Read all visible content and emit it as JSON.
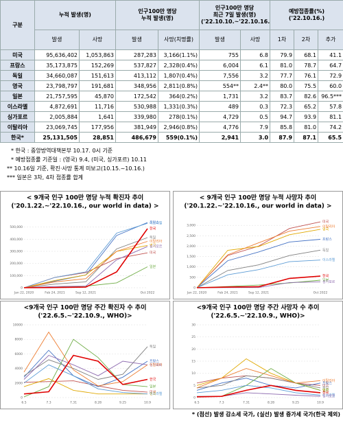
{
  "table": {
    "header": [
      [
        "구분"
      ],
      [
        "누적 발생(명)"
      ],
      [
        "인구100만 명당",
        "누적 발생(명)"
      ],
      [
        "인구100만 명당",
        "최근 7일 발생(명)",
        "('22.10.10.~'22.10.16.)"
      ],
      [
        "예방접종률(%)",
        "('22.10.16.)"
      ]
    ],
    "subheader": [
      "발생",
      "사망",
      "발생",
      "사망(치명률)",
      "발생",
      "사망",
      "1차",
      "2차",
      "추가"
    ],
    "rows": [
      [
        "미국",
        "95,636,402",
        "1,053,863",
        "287,283",
        "3,166(1.1%)",
        "755",
        "6.8",
        "79.9",
        "68.1",
        "41.1"
      ],
      [
        "프랑스",
        "35,173,875",
        "152,269",
        "537,827",
        "2,328(0.4%)",
        "6,004",
        "6.1",
        "81.0",
        "78.7",
        "64.7"
      ],
      [
        "독일",
        "34,660,087",
        "151,613",
        "413,112",
        "1,807(0.4%)",
        "7,556",
        "3.2",
        "77.7",
        "76.1",
        "72.9"
      ],
      [
        "영국",
        "23,798,797",
        "191,681",
        "348,956",
        "2,811(0.8%)",
        "554**",
        "2.4**",
        "80.0",
        "75.5",
        "60.0"
      ],
      [
        "일본",
        "21,757,595",
        "45,870",
        "172,542",
        "364(0.2%)",
        "1,731",
        "3.2",
        "83.7",
        "82.6",
        "96.5***"
      ],
      [
        "이스라엘",
        "4,872,691",
        "11,716",
        "530,988",
        "1,331(0.3%)",
        "489",
        "0.3",
        "72.3",
        "65.2",
        "57.8"
      ],
      [
        "싱가포르",
        "2,005,884",
        "1,641",
        "339,980",
        "278(0.1%)",
        "4,729",
        "0.5",
        "94.7",
        "93.9",
        "81.1"
      ],
      [
        "이탈리아",
        "23,069,745",
        "177,956",
        "381,949",
        "2,946(0.8%)",
        "4,776",
        "7.9",
        "85.8",
        "81.0",
        "74.2"
      ],
      [
        "한국*",
        "25,131,505",
        "28,851",
        "486,679",
        "559(0.1%)",
        "2,941",
        "3.0",
        "87.9",
        "87.1",
        "65.5"
      ]
    ]
  },
  "notes": [
    "* 한국 : 중앙방역대책본부 10.17. 0시 기준",
    "* 예방접종률 기준일 : (영국) 9.4, (미국, 싱가포르) 10.11",
    "** 10.16일 기준, 확진·사망 통계 미보고(10.15.~10.16.)",
    "*** 일본은 3차, 4차 접종률 합계"
  ],
  "charts": [
    {
      "type": "line",
      "title": "< 9개국 인구 100만 명당 누적 확진자 추이",
      "subtitle": "('20.1.22.~'22.10.16., our world in data) >",
      "categories": [
        "Jan 22, 2020",
        "Feb 24, 2021",
        "Sep 12, 2021",
        null,
        "Oct 2022"
      ],
      "ylim": [
        0,
        600000
      ],
      "yticks": [
        0,
        {
          "value": 100000,
          "label": "100,000"
        },
        {
          "value": 200000,
          "label": "200,000"
        },
        {
          "value": 300000,
          "label": "300,000"
        },
        {
          "value": 400000,
          "label": "400,000"
        },
        {
          "value": 500000,
          "label": "500,000"
        }
      ],
      "series": [
        {
          "name": "미국",
          "color": "#c0504d",
          "values": [
            0,
            85000,
            125000,
            240000,
            287283
          ]
        },
        {
          "name": "프랑스",
          "color": "#4472c4",
          "values": [
            0,
            55000,
            105000,
            430000,
            537827
          ]
        },
        {
          "name": "독일",
          "color": "#7f7f7f",
          "values": [
            0,
            30000,
            48000,
            320000,
            413112
          ]
        },
        {
          "name": "영국",
          "color": "#e0a800",
          "values": [
            0,
            60000,
            105000,
            300000,
            348956
          ]
        },
        {
          "name": "일본",
          "color": "#70ad47",
          "values": [
            0,
            3500,
            13000,
            40000,
            172542
          ]
        },
        {
          "name": "이스라엘",
          "color": "#5b9bd5",
          "values": [
            0,
            85000,
            130000,
            450000,
            530988
          ]
        },
        {
          "name": "싱가포르",
          "color": "#8e6bb0",
          "values": [
            0,
            10000,
            13000,
            230000,
            339980
          ]
        },
        {
          "name": "이탈리아",
          "color": "#ed7d31",
          "values": [
            0,
            48000,
            75000,
            300000,
            381949
          ]
        },
        {
          "name": "한국",
          "color": "#e00000",
          "values": [
            0,
            1700,
            5000,
            130000,
            486679
          ]
        }
      ]
    },
    {
      "type": "line",
      "title": "< 9개국 인구 100만 명당 누적 사망자 추이",
      "subtitle": "('20.1.22.~'22.10.16., our world in data) >",
      "categories": [
        "Jan 22, 2020",
        "Feb 24, 2021",
        "Sep 12, 2021",
        null,
        "Oct 2022"
      ],
      "ylim": [
        0,
        3500
      ],
      "yticks": [
        0,
        500,
        {
          "value": 1000,
          "label": "1,000"
        },
        {
          "value": 1500,
          "label": "1,500"
        },
        {
          "value": 2000,
          "label": "2,000"
        },
        {
          "value": 2500,
          "label": "2,500"
        },
        {
          "value": 3000,
          "label": "3,000"
        }
      ],
      "series": [
        {
          "name": "미국",
          "color": "#c0504d",
          "values": [
            0,
            1550,
            2000,
            2850,
            3166
          ]
        },
        {
          "name": "프랑스",
          "color": "#4472c4",
          "values": [
            0,
            1300,
            1720,
            2200,
            2328
          ]
        },
        {
          "name": "독일",
          "color": "#7f7f7f",
          "values": [
            0,
            830,
            1100,
            1550,
            1807
          ]
        },
        {
          "name": "영국",
          "color": "#e0a800",
          "values": [
            0,
            1800,
            1980,
            2550,
            2811
          ]
        },
        {
          "name": "일본",
          "color": "#70ad47",
          "values": [
            0,
            60,
            130,
            230,
            364
          ]
        },
        {
          "name": "이스라엘",
          "color": "#5b9bd5",
          "values": [
            0,
            620,
            870,
            1250,
            1331
          ]
        },
        {
          "name": "싱가포르",
          "color": "#8e6bb0",
          "values": [
            0,
            5,
            10,
            250,
            278
          ]
        },
        {
          "name": "이탈리아",
          "color": "#ed7d31",
          "values": [
            0,
            1580,
            2160,
            2720,
            2946
          ]
        },
        {
          "name": "한국",
          "color": "#e00000",
          "values": [
            0,
            30,
            45,
            450,
            559
          ]
        }
      ]
    },
    {
      "type": "line",
      "title": "<9개국 인구 100만 명당 주간 확진자 수 추이",
      "subtitle": "('22.6.5.~'22.10.9., WHO)>",
      "categories": [
        "6.5",
        "7.3",
        "7.31",
        "8.28",
        "9.25",
        "10.9"
      ],
      "ylim": [
        0,
        10000
      ],
      "yticks": [
        0,
        2000,
        4000,
        6000,
        8000,
        10000
      ],
      "series": [
        {
          "name": "미국",
          "color": "#c0504d",
          "values": [
            2100,
            2200,
            2300,
            1600,
            1000,
            750
          ]
        },
        {
          "name": "프랑스",
          "color": "#4472c4",
          "values": [
            2800,
            6500,
            3000,
            1500,
            2800,
            5000
          ]
        },
        {
          "name": "독일",
          "color": "#7f7f7f",
          "values": [
            3000,
            5200,
            4000,
            2500,
            3200,
            7000
          ]
        },
        {
          "name": "영국",
          "color": "#e0a800",
          "values": [
            1500,
            2600,
            1000,
            500,
            500,
            500
          ]
        },
        {
          "name": "일본",
          "color": "#70ad47",
          "values": [
            100,
            1500,
            8000,
            5500,
            1800,
            1500
          ]
        },
        {
          "name": "이스라엘",
          "color": "#5b9bd5",
          "values": [
            2000,
            4500,
            3000,
            1200,
            700,
            500
          ]
        },
        {
          "name": "싱가포르",
          "color": "#8e6bb0",
          "values": [
            2500,
            5800,
            4500,
            3000,
            5000,
            4500
          ]
        },
        {
          "name": "이탈리아",
          "color": "#ed7d31",
          "values": [
            3500,
            9000,
            3800,
            1600,
            2200,
            4500
          ]
        },
        {
          "name": "한국",
          "color": "#e00000",
          "values": [
            500,
            800,
            5800,
            5000,
            1800,
            2500
          ]
        }
      ]
    },
    {
      "type": "line",
      "title": "<9개국 인구 100만 명당 주간 사망자 수 추이",
      "subtitle": "('22.6.5.~'22.10.9., WHO)>",
      "categories": [
        "6.5",
        "7.3",
        "7.31",
        "8.28",
        "9.25",
        "10.9"
      ],
      "ylim": [
        0,
        30
      ],
      "yticks": [
        0,
        5,
        10,
        15,
        20,
        25,
        30
      ],
      "series": [
        {
          "name": "미국",
          "color": "#c0504d",
          "values": [
            6,
            8,
            9,
            8,
            6,
            5
          ]
        },
        {
          "name": "프랑스",
          "color": "#4472c4",
          "values": [
            3,
            6,
            8,
            5,
            4,
            6
          ]
        },
        {
          "name": "독일",
          "color": "#7f7f7f",
          "values": [
            4,
            5,
            9,
            8,
            6,
            4
          ]
        },
        {
          "name": "영국",
          "color": "#e0a800",
          "values": [
            5,
            8,
            16,
            10,
            6,
            3
          ]
        },
        {
          "name": "일본",
          "color": "#70ad47",
          "values": [
            0.5,
            0.5,
            5,
            12,
            6,
            3
          ]
        },
        {
          "name": "이스라엘",
          "color": "#5b9bd5",
          "values": [
            2,
            3,
            5,
            4,
            2,
            1
          ]
        },
        {
          "name": "싱가포르",
          "color": "#8e6bb0",
          "values": [
            0.5,
            0.5,
            2,
            1.5,
            1,
            0.5
          ]
        },
        {
          "name": "이탈리아",
          "color": "#ed7d31",
          "values": [
            4,
            8,
            12,
            9,
            6,
            7
          ]
        },
        {
          "name": "한국",
          "color": "#e00000",
          "values": [
            0.3,
            0.5,
            3,
            5,
            3,
            2
          ]
        }
      ]
    }
  ],
  "footnote": "* (점선) 발생 감소세 국가, (실선) 발생 증가세 국가(한국 제외)"
}
